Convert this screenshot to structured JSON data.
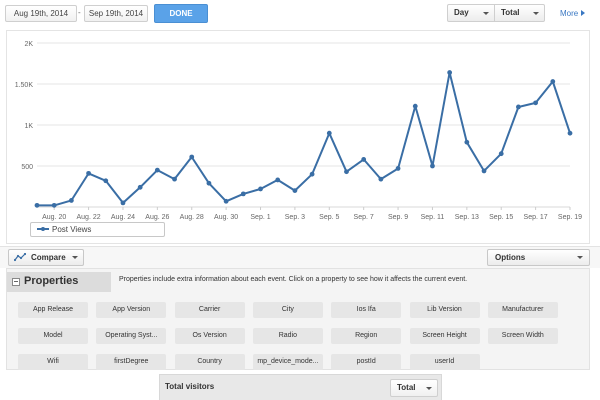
{
  "toolbar": {
    "date_from": "Aug 19th, 2014",
    "date_separator": "-",
    "date_to": "Sep 19th, 2014",
    "done_label": "DONE",
    "interval_select": "Day",
    "metric_select": "Total",
    "more_label": "More"
  },
  "chart_data": {
    "type": "line",
    "xlabel": "",
    "ylabel": "",
    "ylim": [
      0,
      2000
    ],
    "ytick_values": [
      500,
      1000,
      1500,
      2000
    ],
    "ytick_labels": [
      "500",
      "1K",
      "1.50K",
      "2K"
    ],
    "grid": true,
    "x": [
      "Aug 19",
      "Aug 20",
      "Aug 21",
      "Aug 22",
      "Aug 23",
      "Aug 24",
      "Aug 25",
      "Aug 26",
      "Aug 27",
      "Aug 28",
      "Aug 29",
      "Aug 30",
      "Aug 31",
      "Sep. 1",
      "Sep. 2",
      "Sep. 3",
      "Sep. 4",
      "Sep. 5",
      "Sep. 6",
      "Sep. 7",
      "Sep. 8",
      "Sep. 9",
      "Sep. 10",
      "Sep. 11",
      "Sep. 12",
      "Sep. 13",
      "Sep. 14",
      "Sep. 15",
      "Sep. 16",
      "Sep. 17",
      "Sep. 18",
      "Sep. 19"
    ],
    "xtick_labels": [
      "Aug. 20",
      "Aug. 22",
      "Aug. 24",
      "Aug. 26",
      "Aug. 28",
      "Aug. 30",
      "Sep. 1",
      "Sep. 3",
      "Sep. 5",
      "Sep. 7",
      "Sep. 9",
      "Sep. 11",
      "Sep. 13",
      "Sep. 15",
      "Sep. 17",
      "Sep. 19"
    ],
    "series": [
      {
        "name": "Post Views",
        "color": "#3a6ea5",
        "values": [
          20,
          20,
          80,
          410,
          320,
          50,
          240,
          450,
          340,
          610,
          290,
          70,
          160,
          220,
          330,
          200,
          400,
          900,
          430,
          580,
          340,
          470,
          1230,
          500,
          1640,
          790,
          440,
          650,
          1220,
          1270,
          1530,
          900
        ]
      }
    ]
  },
  "legend": {
    "label": "Post Views"
  },
  "controls": {
    "compare_label": "Compare",
    "options_label": "Options"
  },
  "properties": {
    "title": "Properties",
    "description": "Properties include extra information about each event. Click on a property to see how it affects the current event.",
    "items": [
      "App Release",
      "App Version",
      "Carrier",
      "City",
      "Ios Ifa",
      "Lib Version",
      "Manufacturer",
      "Model",
      "Operating Syst...",
      "Os Version",
      "Radio",
      "Region",
      "Screen Height",
      "Screen Width",
      "Wifi",
      "firstDegree",
      "Country",
      "mp_device_mode...",
      "postId",
      "userId"
    ]
  },
  "bottom": {
    "title": "Total visitors",
    "select_value": "Total"
  }
}
